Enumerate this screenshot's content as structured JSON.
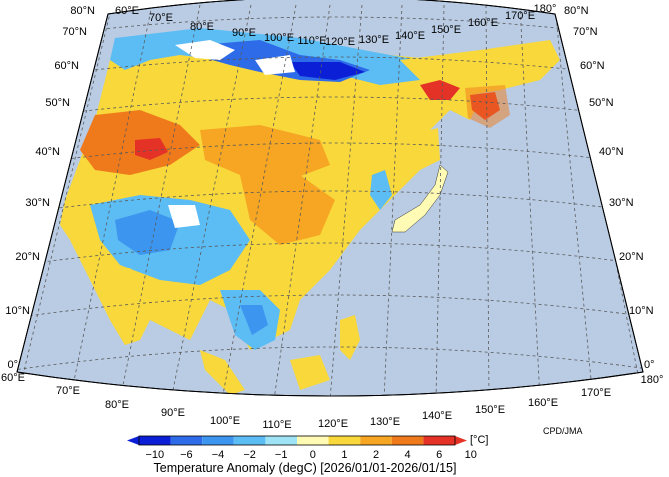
{
  "map": {
    "title": "Temperature Anomaly (degC) [2026/01/01-2026/01/15]",
    "credit": "CPD/JMA",
    "unit": "[°C]",
    "lon_top": [
      "60°E",
      "70°E",
      "80°E",
      "90°E",
      "100°E",
      "110°E",
      "120°E",
      "130°E",
      "140°E",
      "150°E",
      "160°E",
      "170°E",
      "180°"
    ],
    "lon_bottom": [
      "60°E",
      "70°E",
      "80°E",
      "90°E",
      "100°E",
      "110°E",
      "120°E",
      "130°E",
      "140°E",
      "150°E",
      "160°E",
      "170°E",
      "180°"
    ],
    "lat_left": [
      "80°N",
      "70°N",
      "60°N",
      "50°N",
      "40°N",
      "30°N",
      "20°N",
      "10°N",
      "0°"
    ],
    "lat_right": [
      "80°N",
      "70°N",
      "60°N",
      "50°N",
      "40°N",
      "30°N",
      "20°N",
      "10°N",
      "0°"
    ],
    "colorbar": {
      "ticks": [
        "−10",
        "−6",
        "−4",
        "−2",
        "−1",
        "0",
        "1",
        "2",
        "4",
        "6",
        "10"
      ],
      "colors": [
        "#0a1fd6",
        "#2e6be8",
        "#3c95ee",
        "#5cbcf4",
        "#9ee4f6",
        "#fffbb4",
        "#f8d83a",
        "#f6a623",
        "#ef7a1c",
        "#e43326"
      ]
    },
    "colors": {
      "ocean": "#b9cce4",
      "land_white": "#ffffff",
      "grid": "#5a5a5a"
    }
  }
}
